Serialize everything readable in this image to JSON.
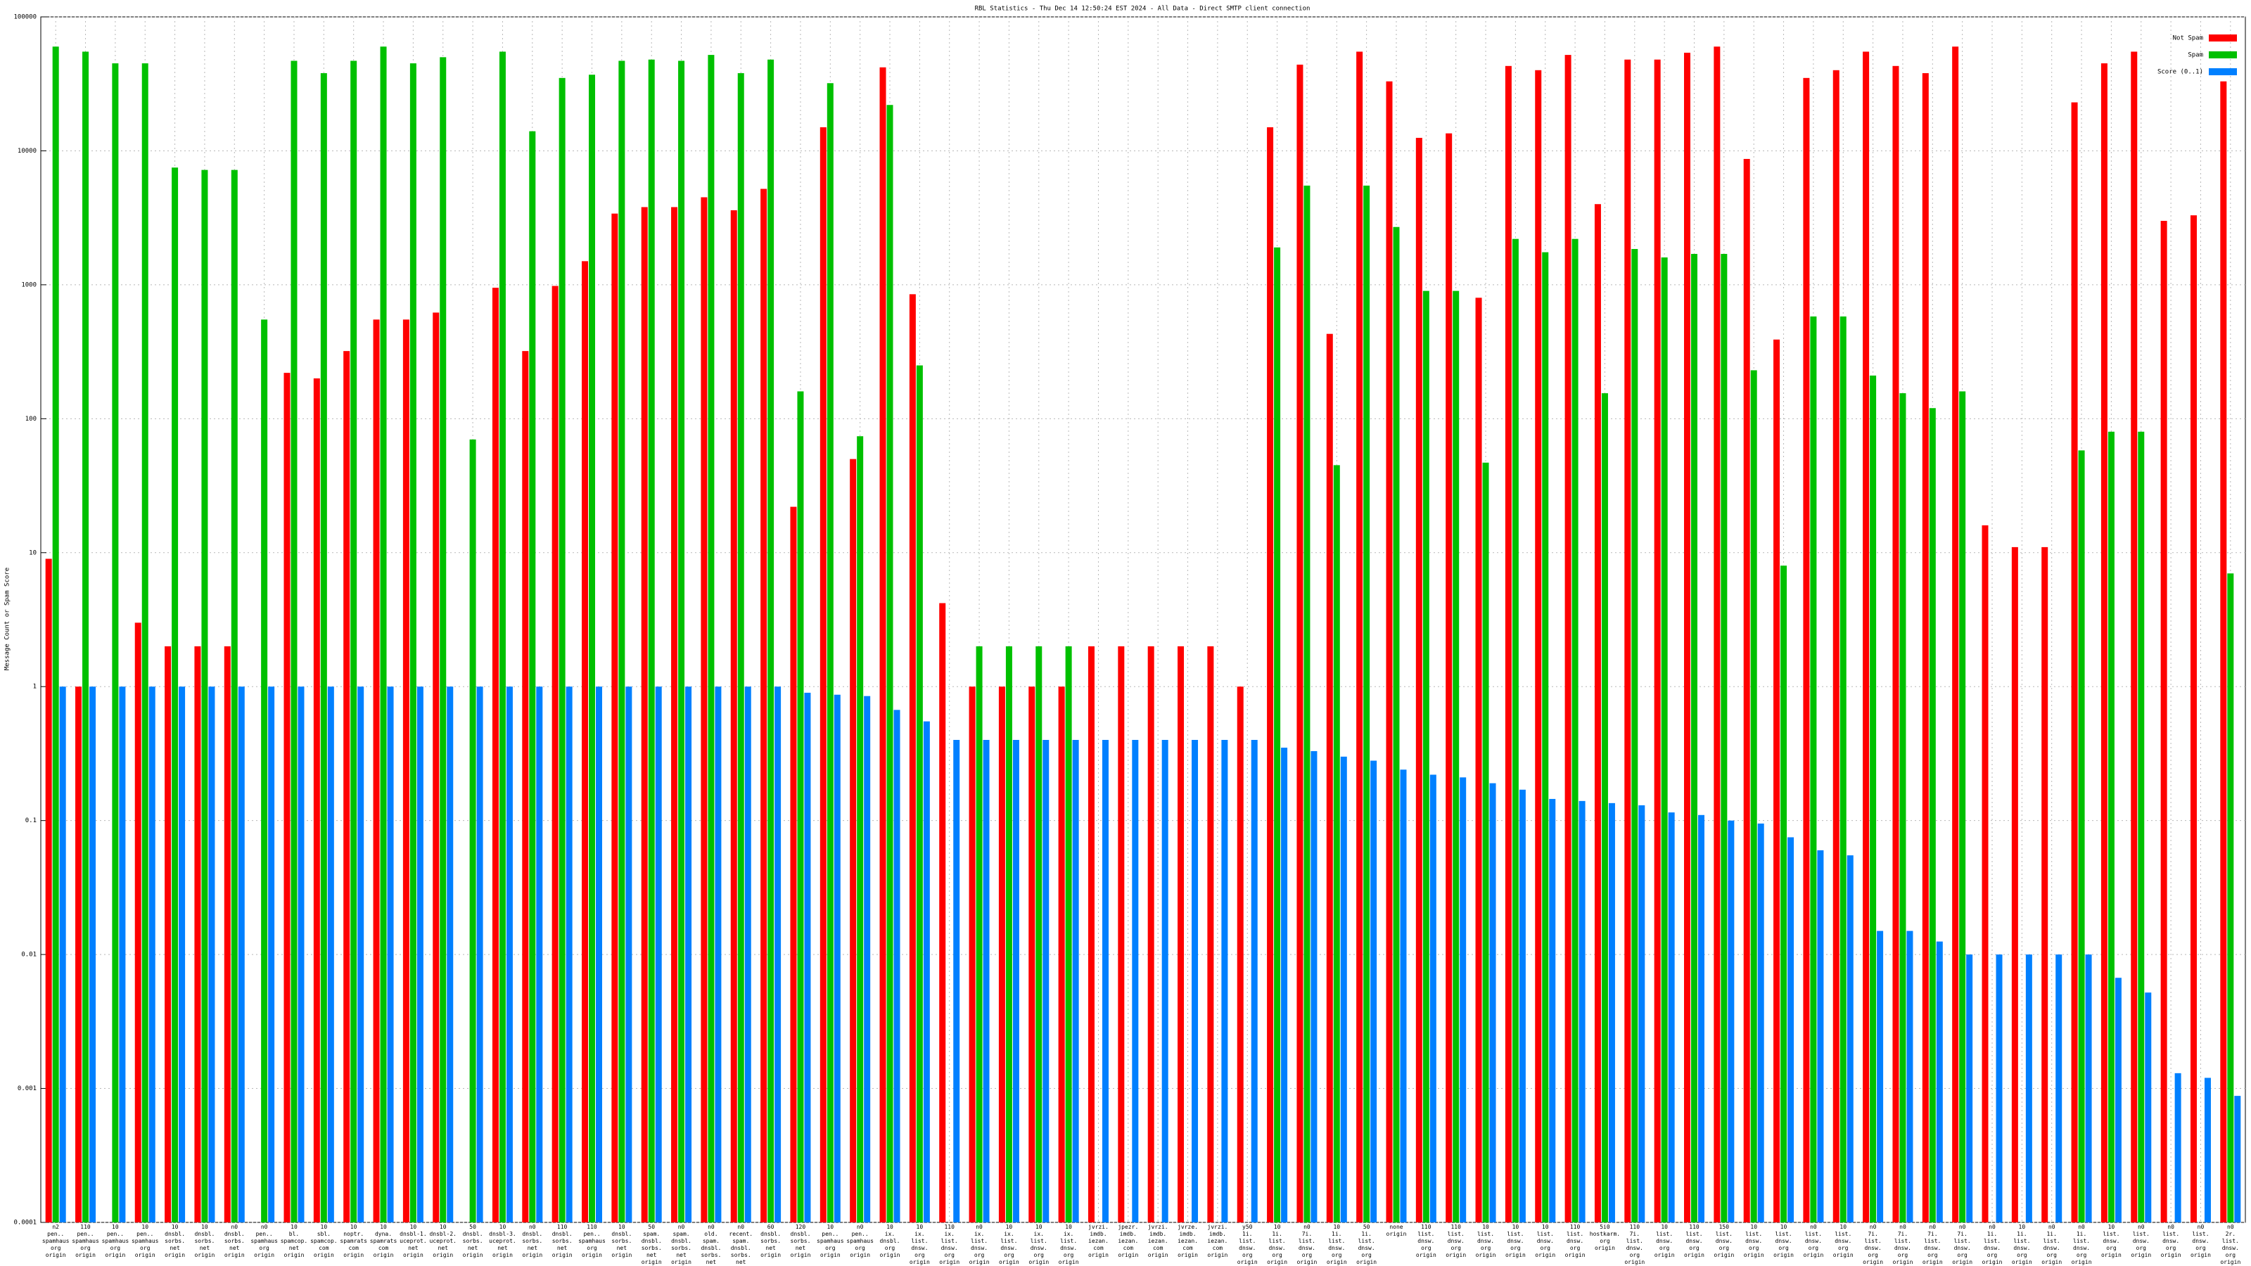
{
  "chart_data": {
    "type": "bar",
    "title": "RBL Statistics - Thu Dec 14 12:50:24 EST 2024 - All Data - Direct SMTP client connection",
    "y_label": "Message Count or Spam Score",
    "log_scale": true,
    "grid": true,
    "legend": "top-right",
    "ylim": [
      0.0001,
      100000
    ],
    "yticks": [
      0.0001,
      0.001,
      0.01,
      0.1,
      1,
      10,
      100,
      1000,
      10000,
      100000
    ],
    "categories": [
      "n2 pen.. spamhaus org origin",
      "110 pen.. spamhaus org origin",
      "10 pen.. spamhaus org origin",
      "10 pen.. spamhaus org origin",
      "10 dnsbl. sorbs. net origin",
      "10 dnsbl. sorbs. net origin",
      "n0 dnsbl. sorbs. net origin",
      "n0 pen.. spamhaus org origin",
      "10 bl. spamcop. net origin",
      "10 sbl. spamcop. com origin",
      "10 noptr. spamrats com origin",
      "10 dyna. spamrats com origin",
      "10 dnsbl-1. uceprot. net origin",
      "10 dnsbl-2. uceprot. net origin",
      "50 dnsbl. sorbs. net origin",
      "10 dnsbl-3. uceprot. net origin",
      "n0 dnsbl. sorbs. net origin",
      "110 dnsbl. sorbs. net origin",
      "110 pen.. spamhaus org origin",
      "10 dnsbl. sorbs. net origin",
      "50 spam. dnsbl. sorbs. net origin",
      "n0 spam. dnsbl. sorbs. net origin",
      "n0 old. spam. dnsbl. sorbs. net origin",
      "n0 recent. spam. dnsbl. sorbs. net origin",
      "60 dnsbl. sorbs. net origin",
      "120 dnsbl. sorbs. net origin",
      "10 pen.. spamhaus org origin",
      "n0 pen.. spamhaus org origin",
      "10 ix. dnsbl. org origin",
      "10 ix. list. dnsw. org origin",
      "110 ix. list. dnsw. org origin",
      "n0 ix. list. dnsw. org origin",
      "10 ix. list. dnsw. org origin",
      "10 ix. list. dnsw. org origin",
      "10 ix. list. dnsw. org origin",
      "jvrzi. imdb. iezan. com origin",
      "jpezr. imdb. iezan. com origin",
      "jvrzi. imdb. iezan. com origin",
      "jvrze. imdb. iezan. com origin",
      "jvrzi. imdb. iezan. com origin",
      "y50 1i. list. dnsw. org origin",
      "10 1i. list. dnsw. org origin",
      "n0 7i. list. dnsw. org origin",
      "10 1i. list. dnsw. org origin",
      "50 1i. list. dnsw. org origin",
      "none origin",
      "110 list. dnsw. org origin",
      "110 list. dnsw. org origin",
      "10 list. dnsw. org origin",
      "10 list. dnsw. org origin",
      "10 list. dnsw. org origin",
      "110 list. dnsw. org origin",
      "5i0 hostkarm. org origin",
      "110 7i. list. dnsw. org origin",
      "10 list. dnsw. org origin",
      "110 list. dnsw. org origin",
      "150 list. dnsw. org origin",
      "10 list. dnsw. org origin",
      "10 list. dnsw. org origin",
      "n0 list. dnsw. org origin",
      "10 list. dnsw. org origin",
      "n0 7i. list. dnsw. org origin",
      "n0 7i. list. dnsw. org origin",
      "n0 7i. list. dnsw. org origin",
      "n0 7i. list. dnsw. org origin",
      "n0 1i. list. dnsw. org origin",
      "10 1i. list. dnsw. org origin",
      "n0 1i. list. dnsw. org origin",
      "n0 1i. list. dnsw. org origin",
      "10 list. dnsw. org origin",
      "n0 list. dnsw. org origin",
      "n0 list. dnsw. org origin",
      "n0 list. dnsw. org origin",
      "n0 2r. list. dnsw. org origin"
    ],
    "series": [
      {
        "name": "Not Spam",
        "color": "#ff0000",
        "values": [
          9,
          1,
          null,
          3,
          2,
          2,
          2,
          null,
          220,
          200,
          320,
          550,
          550,
          620,
          null,
          950,
          320,
          980,
          1500,
          3400,
          3800,
          3800,
          4500,
          3600,
          5200,
          22,
          15000,
          50,
          42000,
          850,
          4.2,
          1,
          1,
          1,
          1,
          2,
          2,
          2,
          2,
          2,
          1,
          15000,
          44000,
          430,
          55000,
          33000,
          12500,
          13500,
          800,
          43000,
          40000,
          52000,
          4000,
          48000,
          48000,
          54000,
          60000,
          8700,
          390,
          35000,
          40000,
          55000,
          43000,
          38000,
          60000,
          16,
          11,
          11,
          23000,
          45000,
          55000,
          3000,
          3300,
          33000
        ]
      },
      {
        "name": "Spam",
        "color": "#00c000",
        "values": [
          60000,
          55000,
          45000,
          45000,
          7500,
          7200,
          7200,
          550,
          47000,
          38000,
          47000,
          60000,
          45000,
          50000,
          70,
          55000,
          14000,
          35000,
          37000,
          47000,
          48000,
          47000,
          52000,
          38000,
          48000,
          160,
          32000,
          74,
          22000,
          250,
          null,
          2,
          2,
          2,
          2,
          null,
          null,
          null,
          null,
          null,
          null,
          1900,
          5500,
          45,
          5500,
          2700,
          900,
          900,
          47,
          2200,
          1750,
          2200,
          155,
          1850,
          1600,
          1700,
          1700,
          230,
          8,
          580,
          580,
          210,
          155,
          120,
          160,
          null,
          null,
          null,
          58,
          80,
          80,
          null,
          null,
          7
        ]
      },
      {
        "name": "Score (0..1)",
        "color": "#0080ff",
        "values": [
          1,
          1,
          1,
          1,
          1,
          1,
          1,
          1,
          1,
          1,
          1,
          1,
          1,
          1,
          1,
          1,
          1,
          1,
          1,
          1,
          1,
          1,
          1,
          1,
          1,
          0.9,
          0.87,
          0.85,
          0.67,
          0.55,
          0.4,
          0.4,
          0.4,
          0.4,
          0.4,
          0.4,
          0.4,
          0.4,
          0.4,
          0.4,
          0.4,
          0.35,
          0.33,
          0.3,
          0.28,
          0.24,
          0.22,
          0.21,
          0.19,
          0.17,
          0.145,
          0.14,
          0.135,
          0.13,
          0.115,
          0.11,
          0.1,
          0.095,
          0.075,
          0.06,
          0.055,
          0.015,
          0.015,
          0.0125,
          0.01,
          0.01,
          0.01,
          0.01,
          0.01,
          0.0067,
          0.0052,
          0.0013,
          0.0012,
          0.00088
        ]
      }
    ]
  }
}
